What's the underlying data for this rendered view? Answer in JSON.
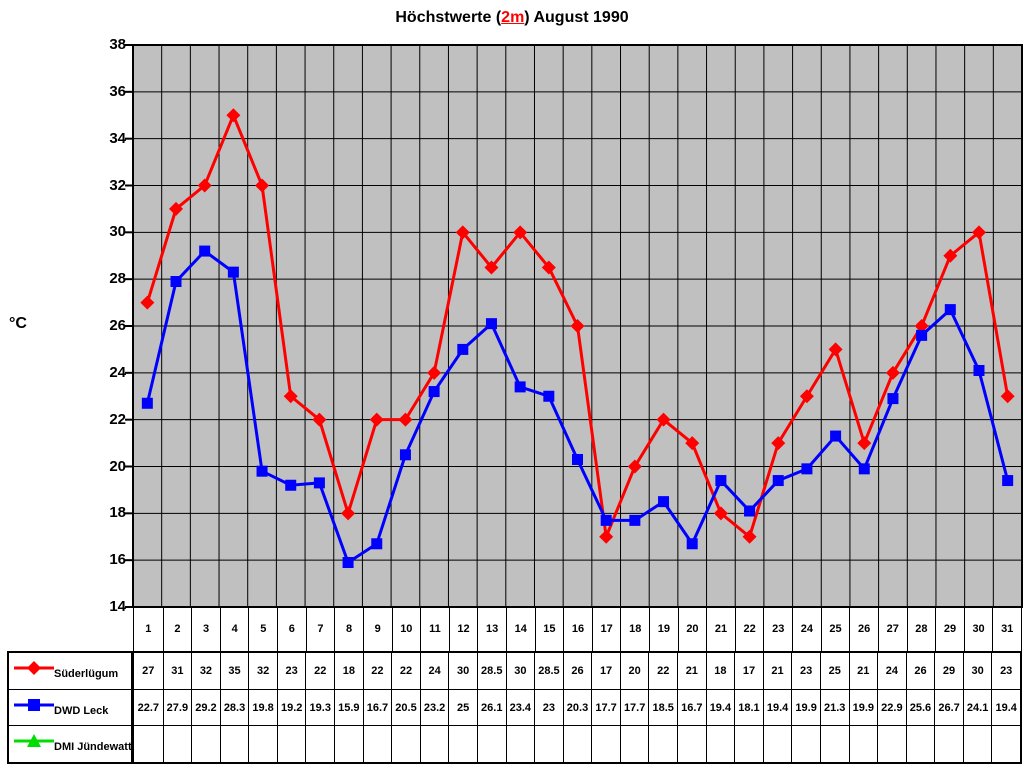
{
  "title": {
    "prefix": "Höchstwerte (",
    "highlight": "2m",
    "suffix": ") August 1990"
  },
  "colors": {
    "title_highlight": "#ff0000",
    "plot_background": "#c0c0c0",
    "gridline": "#000000",
    "axis": "#000000",
    "series_1": "#ff0000",
    "series_2": "#0000ff",
    "series_3": "#00dd00"
  },
  "chart_data": {
    "type": "line",
    "title": "Höchstwerte (2m) August 1990",
    "xlabel": "",
    "ylabel": "°C",
    "ylim": [
      14,
      38
    ],
    "y_tick_step": 2,
    "grid": true,
    "plot_background": "#c0c0c0",
    "gridline_color": "#000000",
    "legend_position": "table-bottom-left",
    "categories": [
      1,
      2,
      3,
      4,
      5,
      6,
      7,
      8,
      9,
      10,
      11,
      12,
      13,
      14,
      15,
      16,
      17,
      18,
      19,
      20,
      21,
      22,
      23,
      24,
      25,
      26,
      27,
      28,
      29,
      30,
      31
    ],
    "series": [
      {
        "name": "Süderlügum",
        "color": "#ff0000",
        "marker": "diamond",
        "values": [
          27,
          31,
          32,
          35,
          32,
          23,
          22,
          18,
          22,
          22,
          24,
          30,
          28.5,
          30,
          28.5,
          26,
          17,
          20,
          22,
          21,
          18,
          17,
          21,
          23,
          25,
          21,
          24,
          26,
          29,
          30,
          23
        ]
      },
      {
        "name": "DWD Leck",
        "color": "#0000ff",
        "marker": "square",
        "values": [
          22.7,
          27.9,
          29.2,
          28.3,
          19.8,
          19.2,
          19.3,
          15.9,
          16.7,
          20.5,
          23.2,
          25,
          26.1,
          23.4,
          23,
          20.3,
          17.7,
          17.7,
          18.5,
          16.7,
          19.4,
          18.1,
          19.4,
          19.9,
          21.3,
          19.9,
          22.9,
          25.6,
          26.7,
          24.1,
          19.4
        ]
      },
      {
        "name": "DMI Jündewatt",
        "color": "#00dd00",
        "marker": "triangle",
        "values": []
      }
    ]
  }
}
